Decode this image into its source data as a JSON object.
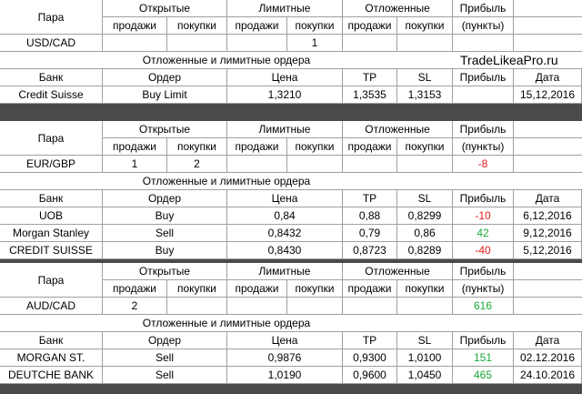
{
  "brand": "TradeLikeaPro.ru",
  "headers": {
    "pair": "Пара",
    "open": "Открытые",
    "limit": "Лимитные",
    "pending": "Отложенные",
    "profit": "Прибыль",
    "sell": "продажи",
    "buy": "покупки",
    "points": "(пункты)",
    "orders_caption": "Отложенные и лимитные ордера",
    "bank": "Банк",
    "order": "Ордер",
    "price": "Цена",
    "tp": "TP",
    "sl": "SL",
    "date": "Дата"
  },
  "sections": [
    {
      "pair": "USD/CAD",
      "open_sell": "",
      "open_buy": "",
      "limit_sell": "",
      "limit_buy": "1",
      "pend_sell": "",
      "pend_buy": "",
      "profit": "",
      "profit_color": "#000000",
      "orders": [
        {
          "bank": "Credit Suisse",
          "order": "Buy Limit",
          "price": "1,3210",
          "tp": "1,3535",
          "sl": "1,3153",
          "profit": "",
          "profit_color": "#000000",
          "date": "15,12,2016"
        }
      ]
    },
    {
      "pair": "EUR/GBP",
      "open_sell": "1",
      "open_buy": "2",
      "limit_sell": "",
      "limit_buy": "",
      "pend_sell": "",
      "pend_buy": "",
      "profit": "-8",
      "profit_color": "#e31b1b",
      "orders": [
        {
          "bank": "UOB",
          "order": "Buy",
          "price": "0,84",
          "tp": "0,88",
          "sl": "0,8299",
          "profit": "-10",
          "profit_color": "#e31b1b",
          "date": "6,12,2016"
        },
        {
          "bank": "Morgan Stanley",
          "order": "Sell",
          "price": "0,8432",
          "tp": "0,79",
          "sl": "0,86",
          "profit": "42",
          "profit_color": "#1aa83a",
          "date": "9,12,2016"
        },
        {
          "bank": "CREDIT SUISSE",
          "order": "Buy",
          "price": "0,8430",
          "tp": "0,8723",
          "sl": "0,8289",
          "profit": "-40",
          "profit_color": "#e31b1b",
          "date": "5,12,2016"
        }
      ]
    },
    {
      "pair": "AUD/CAD",
      "open_sell": "2",
      "open_buy": "",
      "limit_sell": "",
      "limit_buy": "",
      "pend_sell": "",
      "pend_buy": "",
      "profit": "616",
      "profit_color": "#1aa83a",
      "orders": [
        {
          "bank": "MORGAN ST.",
          "order": "Sell",
          "price": "0,9876",
          "tp": "0,9300",
          "sl": "1,0100",
          "profit": "151",
          "profit_color": "#1aa83a",
          "date": "02.12.2016"
        },
        {
          "bank": "DEUTCHE BANK",
          "order": "Sell",
          "price": "1,0190",
          "tp": "0,9600",
          "sl": "1,0450",
          "profit": "465",
          "profit_color": "#1aa83a",
          "date": "24.10.2016"
        }
      ]
    }
  ]
}
